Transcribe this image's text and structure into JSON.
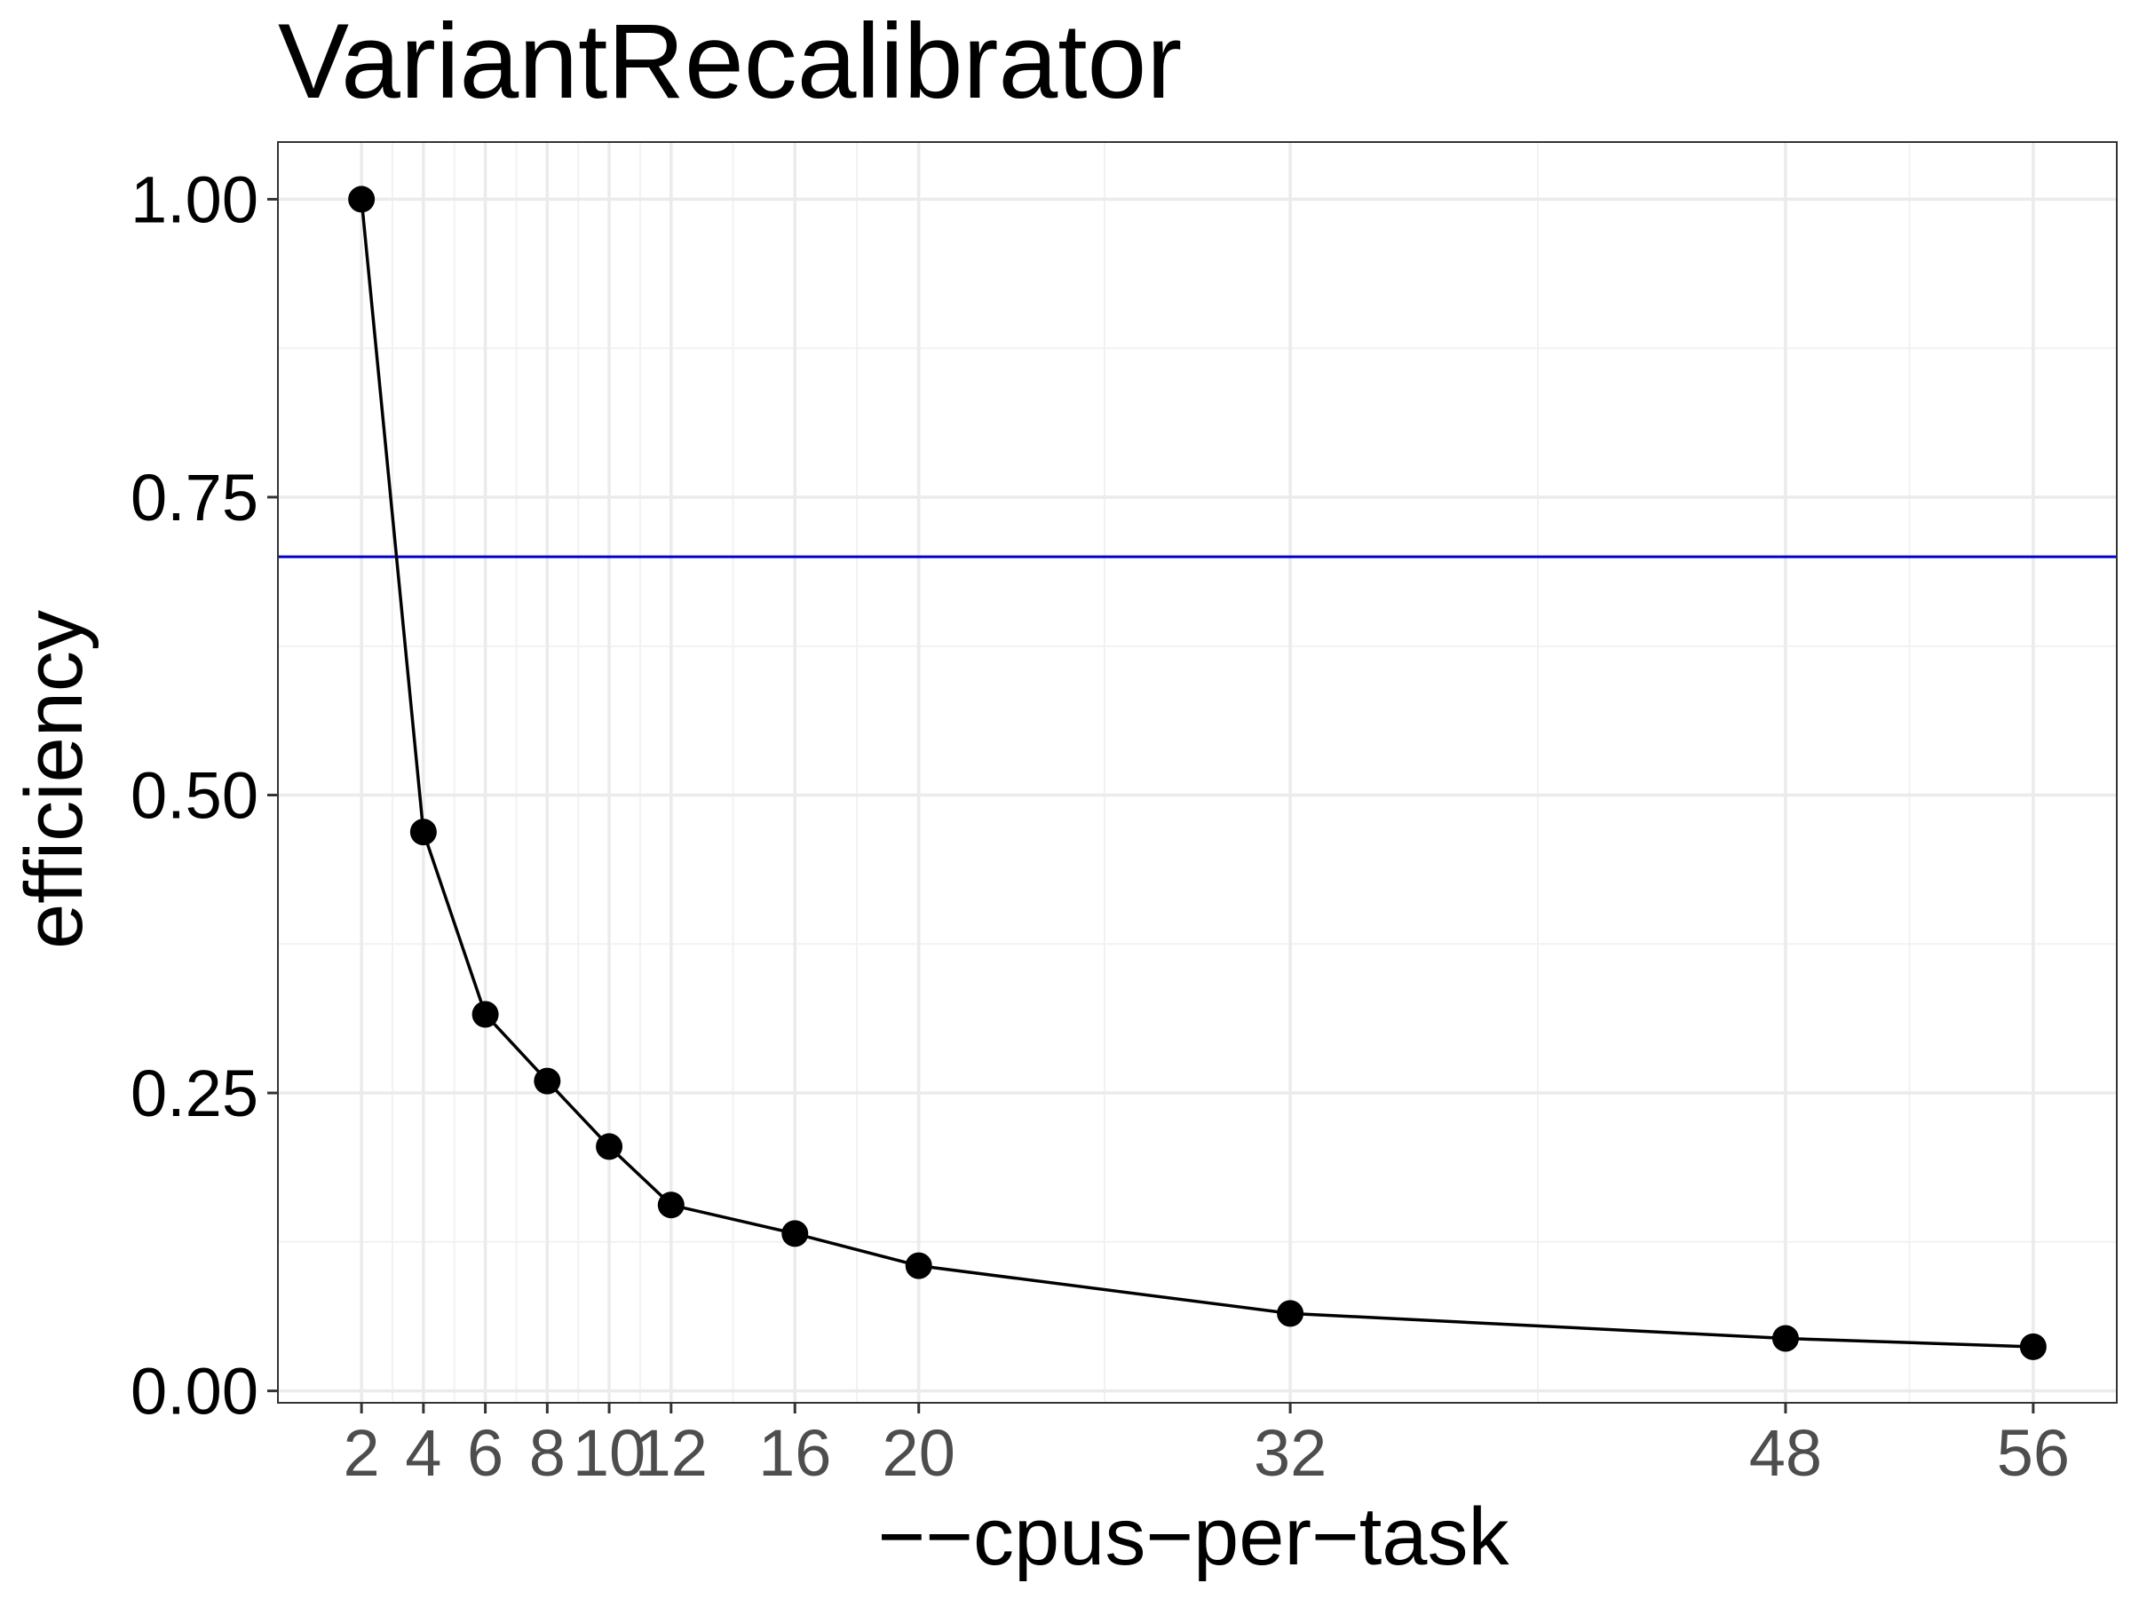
{
  "chart_data": {
    "type": "line",
    "title": "VariantRecalibrator",
    "xlabel": "−−cpus−per−task",
    "ylabel": "efficiency",
    "x_ticks": [
      2,
      4,
      6,
      8,
      10,
      12,
      16,
      20,
      32,
      48,
      56
    ],
    "x_tick_labels": [
      "2",
      "4",
      "6",
      "8",
      "10",
      "12",
      "16",
      "20",
      "32",
      "48",
      "56"
    ],
    "y_ticks": [
      0,
      0.25,
      0.5,
      0.75,
      1.0
    ],
    "y_tick_labels": [
      "0.00",
      "0.25",
      "0.50",
      "0.75",
      "1.00"
    ],
    "xlim": [
      -0.7,
      58.7
    ],
    "ylim": [
      -0.01,
      1.048
    ],
    "grid": true,
    "series": [
      {
        "x": [
          2,
          4,
          6,
          8,
          10,
          12,
          16,
          20,
          32,
          48,
          56
        ],
        "values": [
          1.0,
          0.469,
          0.316,
          0.26,
          0.205,
          0.156,
          0.132,
          0.105,
          0.065,
          0.044,
          0.037
        ],
        "color": "#000000",
        "marker": "circle"
      }
    ],
    "reference_line": {
      "y": 0.7,
      "color": "#0000cc"
    }
  }
}
